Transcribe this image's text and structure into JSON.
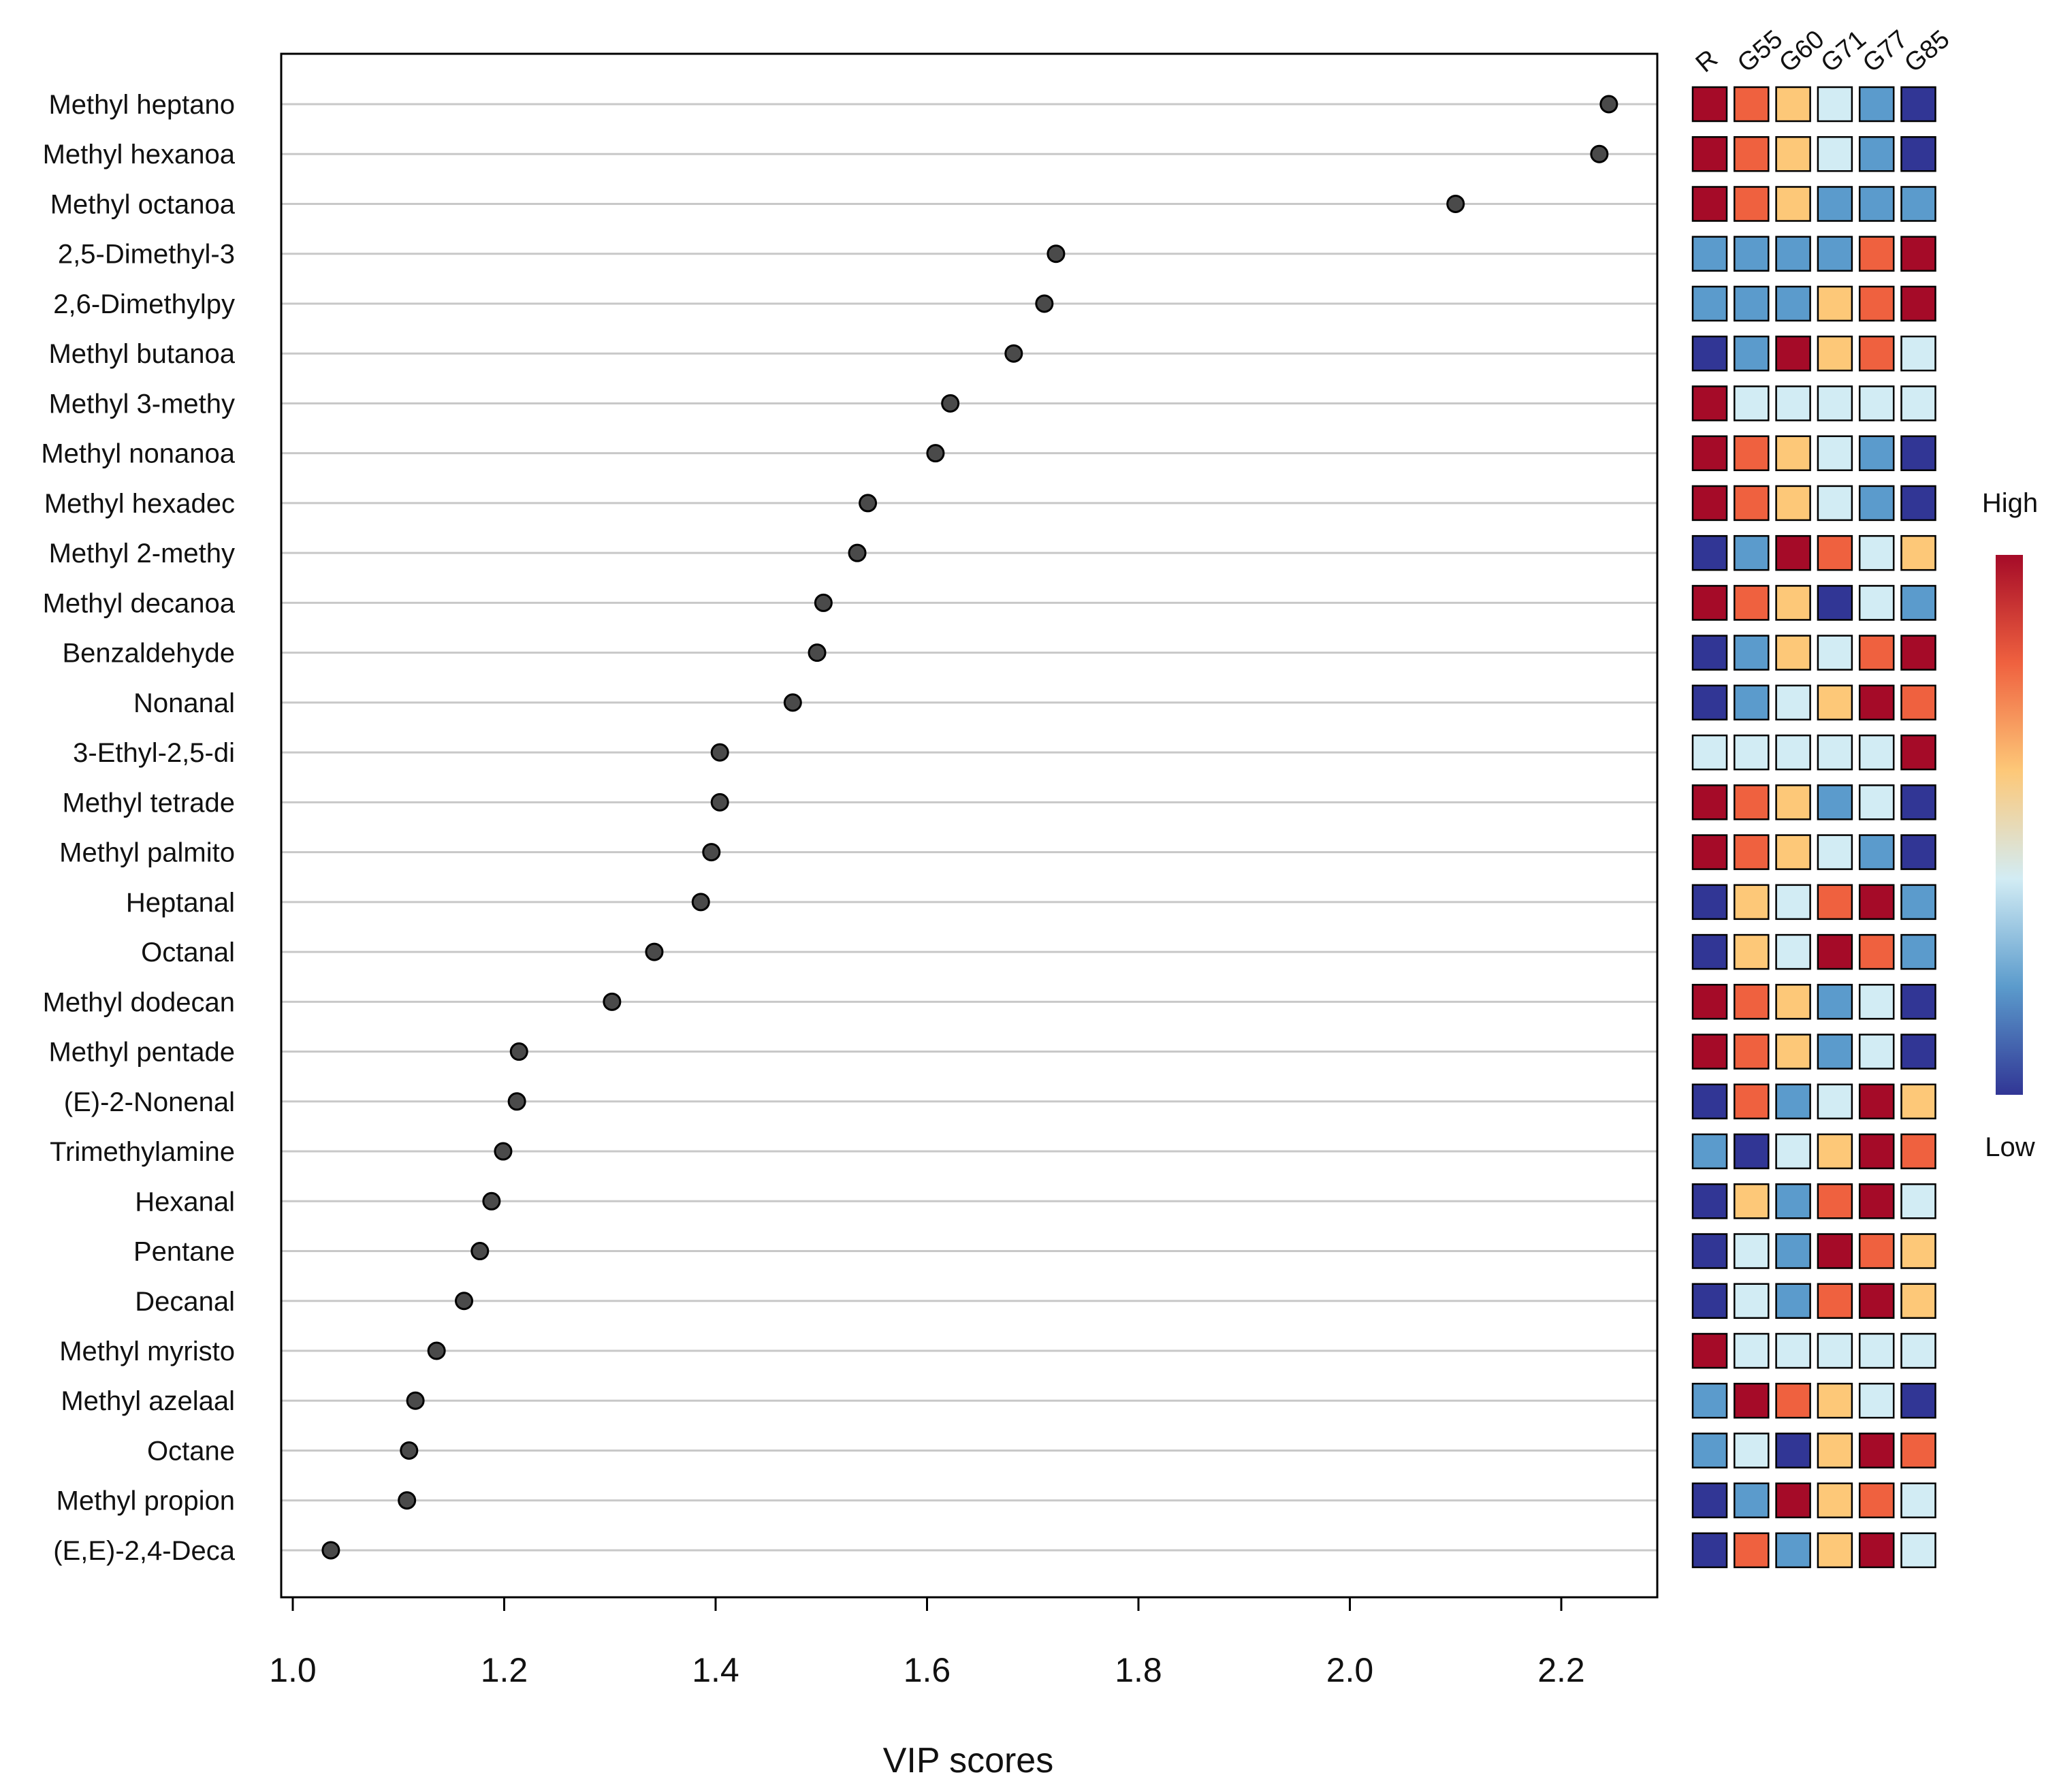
{
  "chart_data": {
    "type": "scatter",
    "xlabel": "VIP scores",
    "ylabel": "",
    "xlim": [
      0.99,
      2.295
    ],
    "xticks": [
      1.0,
      1.2,
      1.4,
      1.6,
      1.8,
      2.0,
      2.2
    ],
    "tick_labels": [
      "1.0",
      "1.2",
      "1.4",
      "1.6",
      "1.8",
      "2.0",
      "2.2"
    ],
    "grid": "horizontal",
    "categories": [
      "Methyl heptano",
      "Methyl hexanoa",
      "Methyl octanoa",
      "2,5-Dimethyl-3",
      "2,6-Dimethylpy",
      "Methyl butanoa",
      "Methyl 3-methy",
      "Methyl nonanoa",
      "Methyl hexadec",
      "Methyl 2-methy",
      "Methyl decanoa",
      "Benzaldehyde",
      "Nonanal",
      "3-Ethyl-2,5-di",
      "Methyl tetrade",
      "Methyl palmito",
      "Heptanal",
      "Octanal",
      "Methyl dodecan",
      "Methyl pentade",
      "(E)-2-Nonenal",
      "Trimethylamine",
      "Hexanal",
      "Pentane",
      "Decanal",
      "Methyl myristo",
      "Methyl azelaal",
      "Octane",
      "Methyl propion",
      "(E,E)-2,4-Deca"
    ],
    "values": [
      2.245,
      2.236,
      2.1,
      1.722,
      1.711,
      1.682,
      1.622,
      1.608,
      1.544,
      1.534,
      1.502,
      1.496,
      1.473,
      1.404,
      1.404,
      1.396,
      1.386,
      1.342,
      1.302,
      1.214,
      1.212,
      1.199,
      1.188,
      1.177,
      1.162,
      1.136,
      1.116,
      1.11,
      1.108,
      1.036
    ],
    "heatmap": {
      "columns": [
        "R",
        "G55",
        "G60",
        "G71",
        "G77",
        "G85"
      ],
      "levels": [
        [
          5,
          4,
          3,
          2,
          1,
          0
        ],
        [
          5,
          4,
          3,
          2,
          1,
          0
        ],
        [
          5,
          4,
          3,
          1,
          1,
          1
        ],
        [
          1,
          1,
          1,
          1,
          4,
          5
        ],
        [
          1,
          1,
          1,
          3,
          4,
          5
        ],
        [
          0,
          1,
          5,
          3,
          4,
          2
        ],
        [
          5,
          2,
          2,
          2,
          2,
          2
        ],
        [
          5,
          4,
          3,
          2,
          1,
          0
        ],
        [
          5,
          4,
          3,
          2,
          1,
          0
        ],
        [
          0,
          1,
          5,
          4,
          2,
          3
        ],
        [
          5,
          4,
          3,
          0,
          2,
          1
        ],
        [
          0,
          1,
          3,
          2,
          4,
          5
        ],
        [
          0,
          1,
          2,
          3,
          5,
          4
        ],
        [
          2,
          2,
          2,
          2,
          2,
          5
        ],
        [
          5,
          4,
          3,
          1,
          2,
          0
        ],
        [
          5,
          4,
          3,
          2,
          1,
          0
        ],
        [
          0,
          3,
          2,
          4,
          5,
          1
        ],
        [
          0,
          3,
          2,
          5,
          4,
          1
        ],
        [
          5,
          4,
          3,
          1,
          2,
          0
        ],
        [
          5,
          4,
          3,
          1,
          2,
          0
        ],
        [
          0,
          4,
          1,
          2,
          5,
          3
        ],
        [
          1,
          0,
          2,
          3,
          5,
          4
        ],
        [
          0,
          3,
          1,
          4,
          5,
          2
        ],
        [
          0,
          2,
          1,
          5,
          4,
          3
        ],
        [
          0,
          2,
          1,
          4,
          5,
          3
        ],
        [
          5,
          2,
          2,
          2,
          2,
          2
        ],
        [
          1,
          5,
          4,
          3,
          2,
          0
        ],
        [
          1,
          2,
          0,
          3,
          5,
          4
        ],
        [
          0,
          1,
          5,
          3,
          4,
          2
        ],
        [
          0,
          4,
          1,
          3,
          5,
          2
        ]
      ],
      "palette": [
        "#313695",
        "#5b9bcc",
        "#d2ecf4",
        "#fdc878",
        "#ef613f",
        "#a50b28"
      ]
    },
    "legend": {
      "high_label": "High",
      "low_label": "Low",
      "placement": "right"
    }
  },
  "colors": {
    "point_fill": "#4a4a4a",
    "point_stroke": "#000000",
    "gridline": "#c8c8c8",
    "frame": "#000000"
  }
}
